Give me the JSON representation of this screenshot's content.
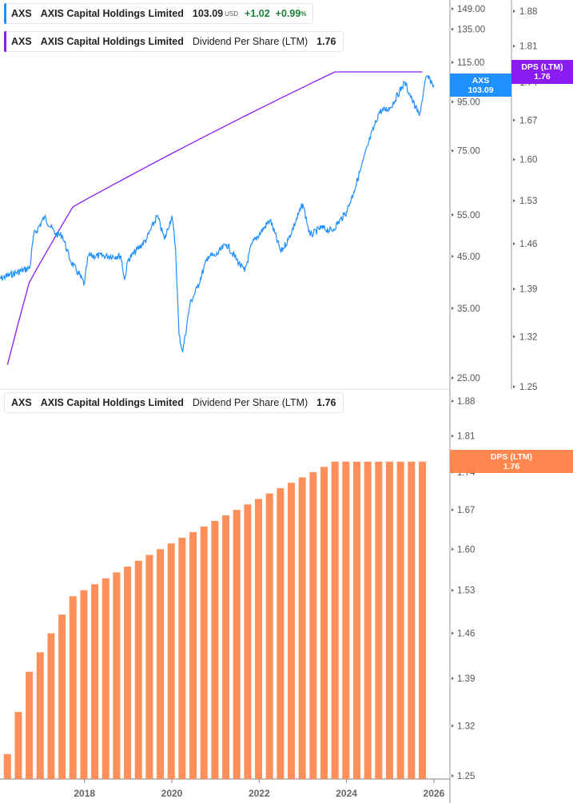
{
  "legend_price": {
    "ticker": "AXS",
    "name": "AXIS Capital Holdings Limited",
    "price": "103.09",
    "currency": "USD",
    "change": "+1.02",
    "change_pct": "+0.99",
    "pct_sign": "%",
    "color": "#1e90ff"
  },
  "legend_dps_top": {
    "ticker": "AXS",
    "name": "AXIS Capital Holdings Limited",
    "metric": "Dividend Per Share (LTM)",
    "value": "1.76",
    "color": "#8b1cf0"
  },
  "legend_dps_bottom": {
    "ticker": "AXS",
    "name": "AXIS Capital Holdings Limited",
    "metric": "Dividend Per Share (LTM)",
    "value": "1.76",
    "color": "#ff8a50"
  },
  "tags": {
    "price": {
      "line1": "AXS",
      "line2": "103.09",
      "color": "#1e90ff"
    },
    "dps_top": {
      "line1": "DPS (LTM)",
      "line2": "1.76",
      "color": "#8b1cf0"
    },
    "dps_bottom": {
      "line1": "DPS (LTM)",
      "line2": "1.76",
      "color": "#ff8a50"
    }
  },
  "chart_data": [
    {
      "type": "line",
      "series": [
        {
          "name": "AXS",
          "color": "#1e90ff",
          "x": [
            "2016-01",
            "2016-10",
            "2016-11",
            "2017-02",
            "2017-05",
            "2017-07",
            "2017-09",
            "2018-01",
            "2018-02",
            "2018-11",
            "2018-12",
            "2019-01",
            "2019-06",
            "2019-09",
            "2019-11",
            "2020-01",
            "2020-02",
            "2020-03",
            "2020-04",
            "2020-06",
            "2020-08",
            "2020-11",
            "2021-01",
            "2021-04",
            "2021-09",
            "2021-11",
            "2022-04",
            "2022-07",
            "2022-09",
            "2023-01",
            "2023-03",
            "2023-06",
            "2023-09",
            "2024-01",
            "2024-03",
            "2024-05",
            "2024-07",
            "2024-10",
            "2025-01",
            "2025-05",
            "2025-07",
            "2025-09",
            "2025-11",
            "2026-01"
          ],
          "y": [
            40.2,
            42.6,
            49.7,
            54.4,
            50.2,
            49.7,
            44.3,
            39.4,
            45.1,
            45.1,
            40.2,
            44.3,
            48.8,
            54.8,
            48.8,
            54.8,
            47.0,
            30.7,
            28.4,
            35.8,
            38.7,
            45.1,
            45.1,
            47.8,
            41.8,
            47.8,
            53.7,
            46.0,
            48.8,
            58.0,
            49.7,
            51.7,
            50.9,
            55.8,
            61.5,
            69.0,
            77.6,
            90.5,
            92.3,
            104.4,
            95.9,
            88.8,
            107.7,
            103.09
          ]
        }
      ],
      "y_axis": {
        "scale": "log",
        "ticks": [
          "149.00",
          "135.00",
          "115.00",
          "95.00",
          "75.00",
          "55.00",
          "45.00",
          "35.00",
          "25.00"
        ],
        "range": [
          25,
          149
        ]
      }
    },
    {
      "type": "line",
      "series": [
        {
          "name": "DPS (LTM)",
          "color": "#8b1cf0"
        }
      ],
      "y_axis": {
        "scale": "log",
        "ticks": [
          "1.88",
          "1.81",
          "1.74",
          "1.67",
          "1.60",
          "1.53",
          "1.46",
          "1.39",
          "1.32",
          "1.25"
        ],
        "range": [
          1.25,
          1.88
        ]
      }
    },
    {
      "type": "bar",
      "series": [
        {
          "name": "DPS (LTM)",
          "color": "#ff8f5a"
        }
      ],
      "categories": [
        "2016-Q2",
        "2016-Q3",
        "2016-Q4",
        "2017-Q1",
        "2017-Q2",
        "2017-Q3",
        "2017-Q4",
        "2018-Q1",
        "2018-Q2",
        "2018-Q3",
        "2018-Q4",
        "2019-Q1",
        "2019-Q2",
        "2019-Q3",
        "2019-Q4",
        "2020-Q1",
        "2020-Q2",
        "2020-Q3",
        "2020-Q4",
        "2021-Q1",
        "2021-Q2",
        "2021-Q3",
        "2021-Q4",
        "2022-Q1",
        "2022-Q2",
        "2022-Q3",
        "2022-Q4",
        "2023-Q1",
        "2023-Q2",
        "2023-Q3",
        "2023-Q4",
        "2024-Q1",
        "2024-Q2",
        "2024-Q3",
        "2024-Q4",
        "2025-Q1",
        "2025-Q2",
        "2025-Q3",
        "2025-Q4"
      ],
      "values": [
        1.28,
        1.34,
        1.4,
        1.43,
        1.46,
        1.49,
        1.52,
        1.53,
        1.54,
        1.55,
        1.56,
        1.57,
        1.58,
        1.59,
        1.6,
        1.61,
        1.62,
        1.63,
        1.64,
        1.65,
        1.66,
        1.67,
        1.68,
        1.69,
        1.7,
        1.71,
        1.72,
        1.73,
        1.74,
        1.75,
        1.76,
        1.76,
        1.76,
        1.76,
        1.76,
        1.76,
        1.76,
        1.76,
        1.76
      ],
      "y_axis": {
        "scale": "log",
        "ticks": [
          "1.88",
          "1.81",
          "1.74",
          "1.67",
          "1.60",
          "1.53",
          "1.46",
          "1.39",
          "1.32",
          "1.25"
        ],
        "range": [
          1.25,
          1.88
        ]
      },
      "x_axis": {
        "ticks": [
          "2018",
          "2020",
          "2022",
          "2024",
          "2026"
        ]
      }
    }
  ]
}
